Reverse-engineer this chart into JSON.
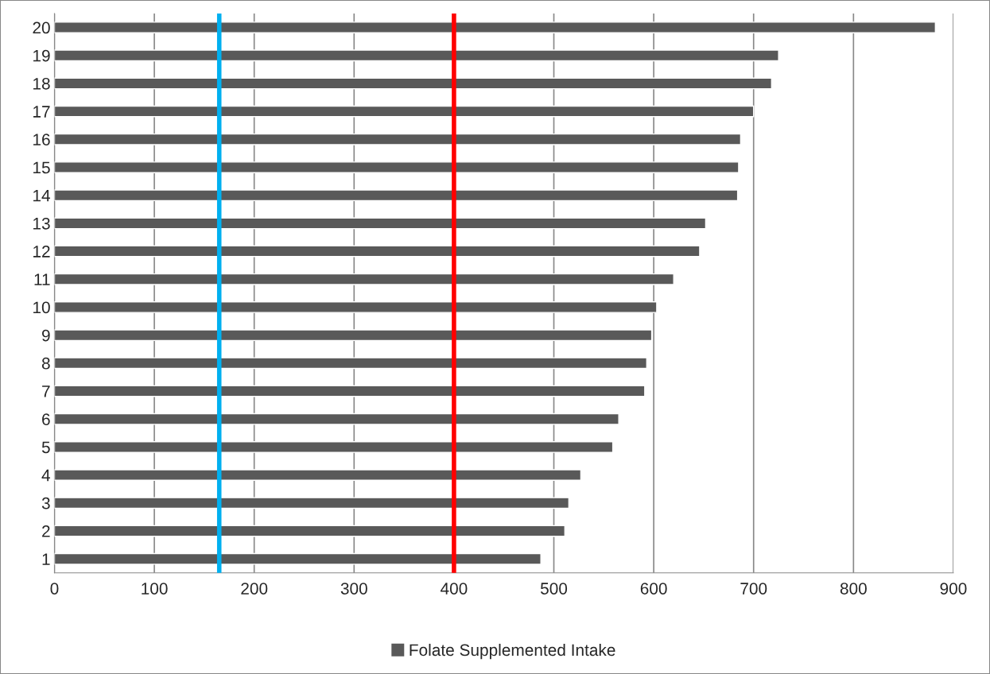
{
  "chart_data": {
    "type": "bar",
    "orientation": "horizontal",
    "categories": [
      "20",
      "19",
      "18",
      "17",
      "16",
      "15",
      "14",
      "13",
      "12",
      "11",
      "10",
      "9",
      "8",
      "7",
      "6",
      "5",
      "4",
      "3",
      "2",
      "1"
    ],
    "series": [
      {
        "name": "Folate Supplemented Intake",
        "color": "#595959",
        "values": [
          882,
          725,
          718,
          700,
          687,
          685,
          684,
          652,
          646,
          620,
          603,
          598,
          593,
          591,
          565,
          559,
          527,
          515,
          511,
          487
        ]
      }
    ],
    "xlim": [
      0,
      900
    ],
    "xticks": [
      0,
      100,
      200,
      300,
      400,
      500,
      600,
      700,
      800,
      900
    ],
    "grid": "x",
    "legend": "bottom",
    "ref_lines": [
      {
        "axis": "x",
        "value": 165,
        "color": "#00b0f0"
      },
      {
        "axis": "x",
        "value": 400,
        "color": "#ff0000"
      }
    ]
  }
}
